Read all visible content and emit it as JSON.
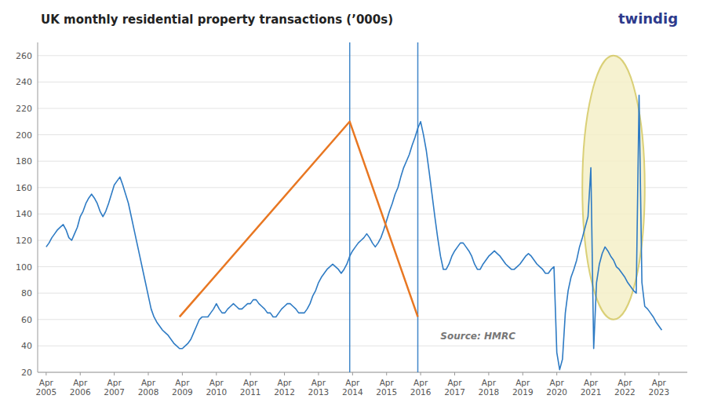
{
  "chart_data": {
    "type": "line",
    "title": "UK monthly residential property transactions (’000s)",
    "categories": [
      "Apr\n2005",
      null,
      null,
      null,
      null,
      null,
      null,
      null,
      null,
      null,
      null,
      null,
      "Apr\n2006",
      null,
      null,
      null,
      null,
      null,
      null,
      null,
      null,
      null,
      null,
      null,
      "Apr\n2007",
      null,
      null,
      null,
      null,
      null,
      null,
      null,
      null,
      null,
      null,
      null,
      "Apr\n2008",
      null,
      null,
      null,
      null,
      null,
      null,
      null,
      null,
      null,
      null,
      null,
      "Apr\n2009",
      null,
      null,
      null,
      null,
      null,
      null,
      null,
      null,
      null,
      null,
      null,
      "Apr\n2010",
      null,
      null,
      null,
      null,
      null,
      null,
      null,
      null,
      null,
      null,
      null,
      "Apr\n2011",
      null,
      null,
      null,
      null,
      null,
      null,
      null,
      null,
      null,
      null,
      null,
      "Apr\n2012",
      null,
      null,
      null,
      null,
      null,
      null,
      null,
      null,
      null,
      null,
      null,
      "Apr\n2013",
      null,
      null,
      null,
      null,
      null,
      null,
      null,
      null,
      null,
      null,
      null,
      "Apr\n2014",
      null,
      null,
      null,
      null,
      null,
      null,
      null,
      null,
      null,
      null,
      null,
      "Apr\n2015",
      null,
      null,
      null,
      null,
      null,
      null,
      null,
      null,
      null,
      null,
      null,
      "Apr\n2016",
      null,
      null,
      null,
      null,
      null,
      null,
      null,
      null,
      null,
      null,
      null,
      "Apr\n2017",
      null,
      null,
      null,
      null,
      null,
      null,
      null,
      null,
      null,
      null,
      null,
      "Apr\n2018",
      null,
      null,
      null,
      null,
      null,
      null,
      null,
      null,
      null,
      null,
      null,
      "Apr\n2019",
      null,
      null,
      null,
      null,
      null,
      null,
      null,
      null,
      null,
      null,
      null,
      "Apr\n2020",
      null,
      null,
      null,
      null,
      null,
      null,
      null,
      null,
      null,
      null,
      null,
      "Apr\n2021",
      null,
      null,
      null,
      null,
      null,
      null,
      null,
      null,
      null,
      null,
      null,
      "Apr\n2022",
      null,
      null,
      null,
      null,
      null,
      null,
      null,
      null,
      null,
      null,
      null,
      "Apr\n2023",
      null
    ],
    "values": [
      115,
      118,
      122,
      125,
      128,
      130,
      132,
      128,
      122,
      120,
      125,
      130,
      138,
      142,
      148,
      152,
      155,
      152,
      148,
      142,
      138,
      142,
      148,
      155,
      162,
      165,
      168,
      162,
      155,
      148,
      138,
      128,
      118,
      108,
      98,
      88,
      78,
      68,
      62,
      58,
      55,
      52,
      50,
      48,
      45,
      42,
      40,
      38,
      38,
      40,
      42,
      45,
      50,
      55,
      60,
      62,
      62,
      62,
      65,
      68,
      72,
      68,
      65,
      65,
      68,
      70,
      72,
      70,
      68,
      68,
      70,
      72,
      72,
      75,
      75,
      72,
      70,
      68,
      65,
      65,
      62,
      62,
      65,
      68,
      70,
      72,
      72,
      70,
      68,
      65,
      65,
      65,
      68,
      72,
      78,
      82,
      88,
      92,
      95,
      98,
      100,
      102,
      100,
      98,
      95,
      98,
      102,
      108,
      112,
      115,
      118,
      120,
      122,
      125,
      122,
      118,
      115,
      118,
      122,
      128,
      135,
      142,
      148,
      155,
      160,
      168,
      175,
      180,
      185,
      192,
      198,
      205,
      210,
      200,
      188,
      172,
      155,
      138,
      122,
      108,
      98,
      98,
      102,
      108,
      112,
      115,
      118,
      118,
      115,
      112,
      108,
      102,
      98,
      98,
      102,
      105,
      108,
      110,
      112,
      110,
      108,
      105,
      102,
      100,
      98,
      98,
      100,
      102,
      105,
      108,
      110,
      108,
      105,
      102,
      100,
      98,
      95,
      95,
      98,
      100,
      35,
      22,
      30,
      65,
      82,
      92,
      98,
      105,
      115,
      122,
      130,
      138,
      175,
      38,
      88,
      102,
      110,
      115,
      112,
      108,
      105,
      100,
      98,
      95,
      92,
      88,
      85,
      82,
      80,
      230,
      88,
      70,
      68,
      65,
      62,
      58,
      55,
      52
    ],
    "color": "#2e7bc4",
    "xlim": [
      -3,
      226
    ],
    "ylim": [
      20,
      270
    ],
    "yticks": [
      20,
      40,
      60,
      80,
      100,
      120,
      140,
      160,
      180,
      200,
      220,
      240,
      260
    ],
    "grid": true,
    "stamp_duty_line": {
      "x": [
        47,
        107,
        131
      ],
      "y": [
        62,
        210,
        62
      ],
      "color": "#e87722"
    },
    "vlines": [
      {
        "x": 107,
        "color": "#2e7bc4"
      },
      {
        "x": 131,
        "color": "#2e7bc4"
      }
    ],
    "highlight_ellipse": {
      "x": 200,
      "y": 160,
      "width": 22,
      "height": 200,
      "color": "#f5f0c8",
      "edge_color": "#d4c860"
    },
    "annotations": [
      {
        "text": "Source: HMRC"
      }
    ],
    "logo": {
      "text": "twindig",
      "color": "#2d3a8c"
    }
  }
}
